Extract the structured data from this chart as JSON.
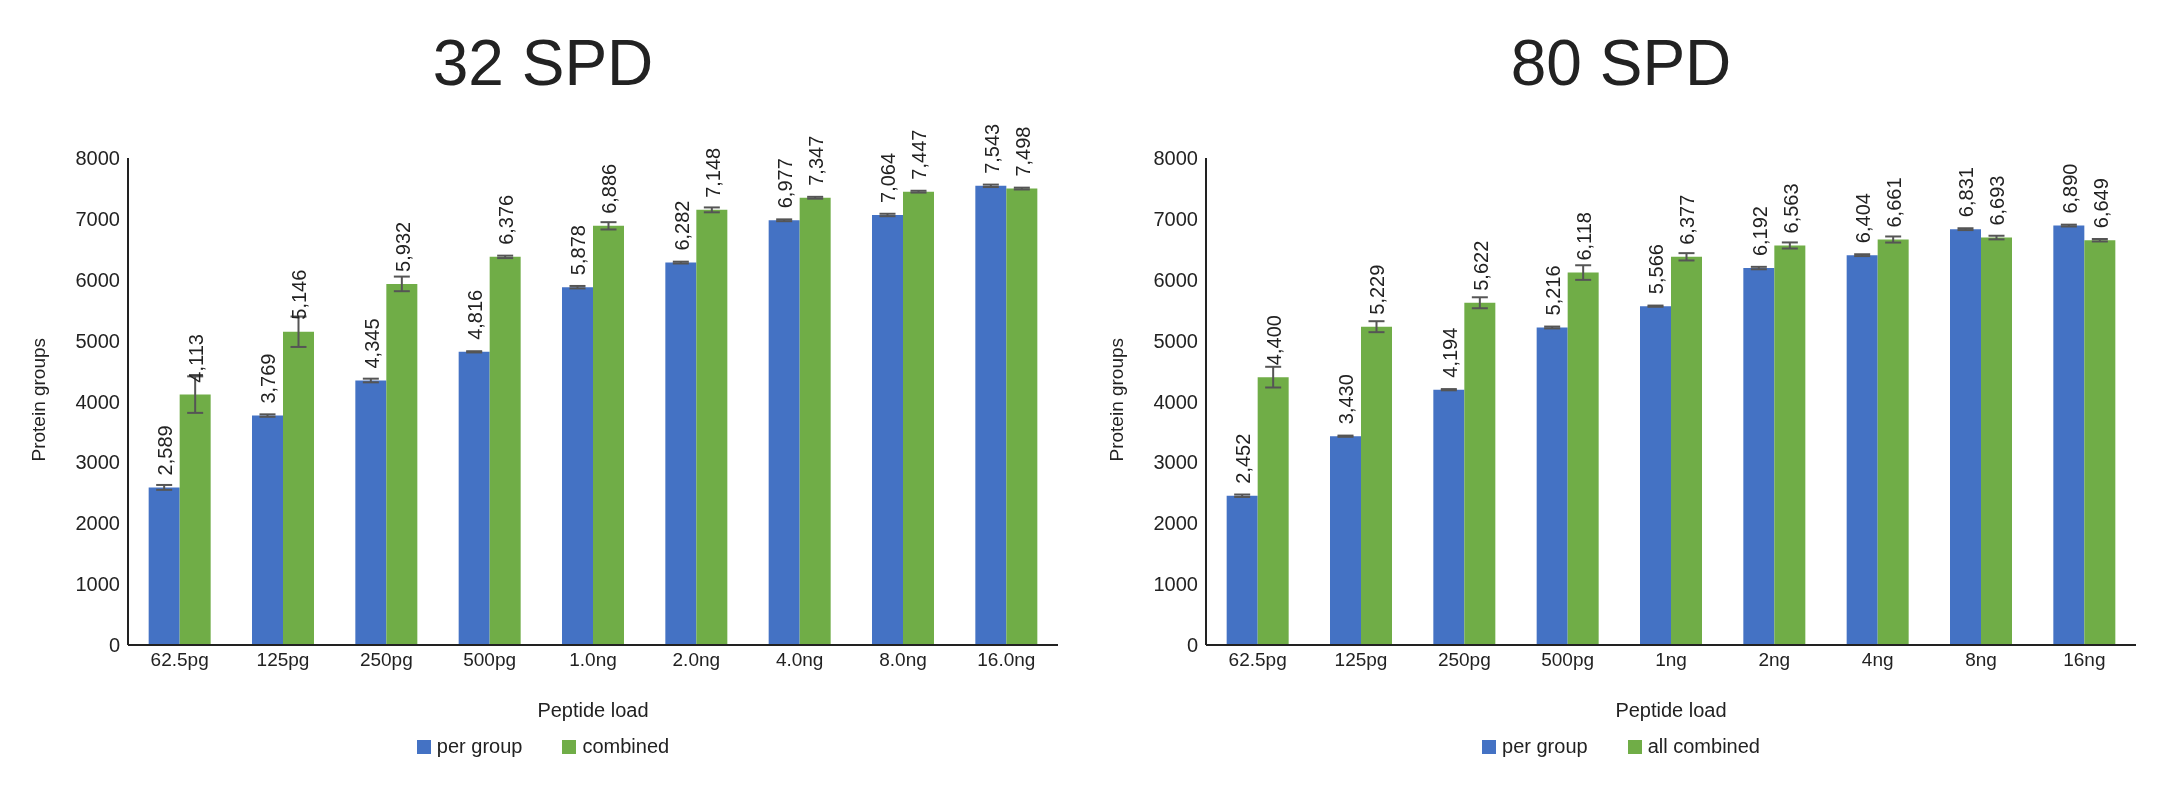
{
  "chart_data": [
    {
      "type": "bar",
      "title": "32 SPD",
      "xlabel": "Peptide load",
      "ylabel": "Protein groups",
      "categories": [
        "62.5pg",
        "125pg",
        "250pg",
        "500pg",
        "1.0ng",
        "2.0ng",
        "4.0ng",
        "8.0ng",
        "16.0ng"
      ],
      "series": [
        {
          "name": "per group",
          "color": "#4472c4",
          "values": [
            2589,
            3769,
            4345,
            4816,
            5878,
            6282,
            6977,
            7064,
            7543
          ],
          "value_labels": [
            "2,589",
            "3,769",
            "4,345",
            "4,816",
            "5,878",
            "6,282",
            "6,977",
            "7,064",
            "7,543"
          ],
          "errors": [
            40,
            20,
            30,
            10,
            20,
            15,
            15,
            20,
            20
          ]
        },
        {
          "name": "combined",
          "color": "#70ad47",
          "values": [
            4113,
            5146,
            5932,
            6376,
            6886,
            7148,
            7347,
            7447,
            7498
          ],
          "value_labels": [
            "4,113",
            "5,146",
            "5,932",
            "6,376",
            "6,886",
            "7,148",
            "7,347",
            "7,447",
            "7,498"
          ],
          "errors": [
            300,
            250,
            120,
            20,
            60,
            40,
            15,
            15,
            15
          ]
        }
      ],
      "ylim": [
        0,
        8000
      ],
      "yticks": [
        0,
        1000,
        2000,
        3000,
        4000,
        5000,
        6000,
        7000,
        8000
      ],
      "grid": false,
      "legend": "bottom"
    },
    {
      "type": "bar",
      "title": "80 SPD",
      "xlabel": "Peptide load",
      "ylabel": "Protein groups",
      "categories": [
        "62.5pg",
        "125pg",
        "250pg",
        "500pg",
        "1ng",
        "2ng",
        "4ng",
        "8ng",
        "16ng"
      ],
      "series": [
        {
          "name": "per group",
          "color": "#4472c4",
          "values": [
            2452,
            3430,
            4194,
            5216,
            5566,
            6192,
            6404,
            6831,
            6890
          ],
          "value_labels": [
            "2,452",
            "3,430",
            "4,194",
            "5,216",
            "5,566",
            "6,192",
            "6,404",
            "6,831",
            "6,890"
          ],
          "errors": [
            20,
            10,
            10,
            15,
            10,
            20,
            15,
            15,
            15
          ]
        },
        {
          "name": "all combined",
          "color": "#70ad47",
          "values": [
            4400,
            5229,
            5622,
            6118,
            6377,
            6563,
            6661,
            6693,
            6649
          ],
          "value_labels": [
            "4,400",
            "5,229",
            "5,622",
            "6,118",
            "6,377",
            "6,563",
            "6,661",
            "6,693",
            "6,649"
          ],
          "errors": [
            170,
            90,
            90,
            120,
            60,
            50,
            50,
            30,
            20
          ]
        }
      ],
      "ylim": [
        0,
        8000
      ],
      "yticks": [
        0,
        1000,
        2000,
        3000,
        4000,
        5000,
        6000,
        7000,
        8000
      ],
      "grid": false,
      "legend": "bottom"
    }
  ]
}
